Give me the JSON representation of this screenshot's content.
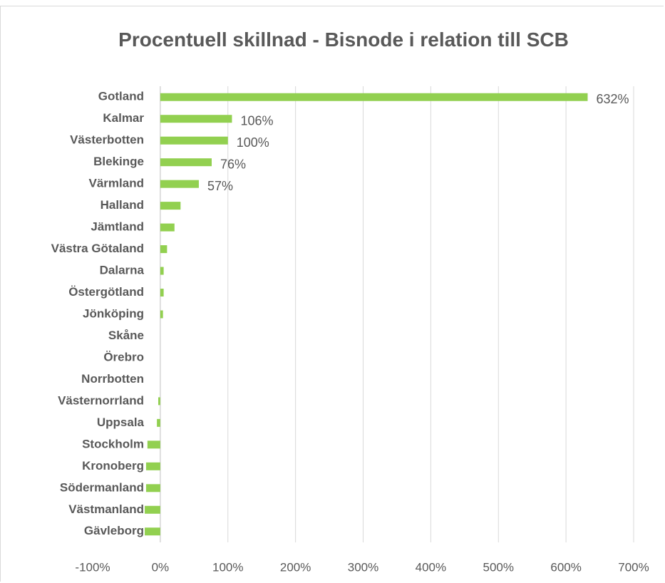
{
  "chart_data": {
    "type": "hbar",
    "title": "Procentuell skillnad - Bisnode i relation till SCB",
    "categories": [
      "Gotland",
      "Kalmar",
      "Västerbotten",
      "Blekinge",
      "Värmland",
      "Halland",
      "Jämtland",
      "Västra Götaland",
      "Dalarna",
      "Östergötland",
      "Jönköping",
      "Skåne",
      "Örebro",
      "Norrbotten",
      "Västernorrland",
      "Uppsala",
      "Stockholm",
      "Kronoberg",
      "Södermanland",
      "Västmanland",
      "Gävleborg"
    ],
    "values": [
      632,
      106,
      100,
      76,
      57,
      30,
      21,
      10,
      5,
      5,
      4,
      0,
      0,
      0,
      -3,
      -5,
      -19,
      -21,
      -21,
      -23,
      -23
    ],
    "value_labels": [
      "632%",
      "106%",
      "100%",
      "76%",
      "57%",
      null,
      null,
      null,
      null,
      null,
      null,
      null,
      null,
      null,
      null,
      null,
      null,
      null,
      null,
      null,
      null
    ],
    "color": "#92d050",
    "xlim": [
      -100,
      700
    ],
    "xticks": [
      {
        "value": -100,
        "label": "-100%"
      },
      {
        "value": 0,
        "label": "0%"
      },
      {
        "value": 100,
        "label": "100%"
      },
      {
        "value": 200,
        "label": "200%"
      },
      {
        "value": 300,
        "label": "300%"
      },
      {
        "value": 400,
        "label": "400%"
      },
      {
        "value": 500,
        "label": "500%"
      },
      {
        "value": 600,
        "label": "600%"
      },
      {
        "value": 700,
        "label": "700%"
      }
    ],
    "grid": true
  }
}
